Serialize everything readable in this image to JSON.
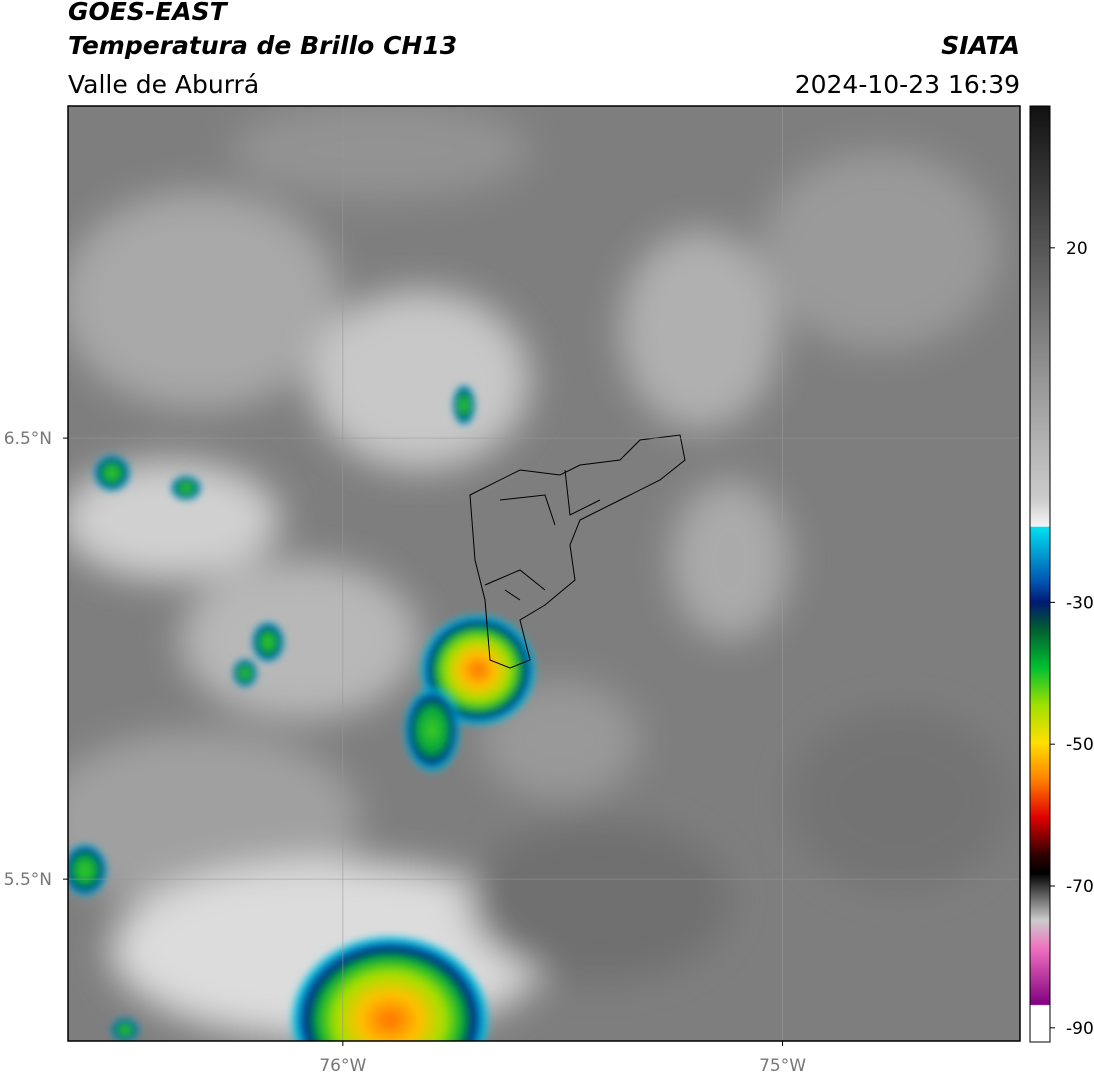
{
  "header": {
    "title": "GOES-EAST",
    "subtitle": "Temperatura de Brillo CH13",
    "region": "Valle de Aburrá",
    "source": "SIATA",
    "datetime": "2024-10-23 16:39"
  },
  "map": {
    "xlim": [
      -76.625,
      -74.46
    ],
    "ylim": [
      5.133,
      7.253
    ],
    "xticks": [
      {
        "value": -76,
        "label": "76°W"
      },
      {
        "value": -75,
        "label": "75°W"
      }
    ],
    "yticks": [
      {
        "value": 6.5,
        "label": "6.5°N"
      },
      {
        "value": 5.5,
        "label": "5.5°N"
      }
    ],
    "grid": true
  },
  "colorbar": {
    "lim": [
      -92,
      40
    ],
    "ticks": [
      20,
      -30,
      -50,
      -70,
      -90
    ]
  }
}
